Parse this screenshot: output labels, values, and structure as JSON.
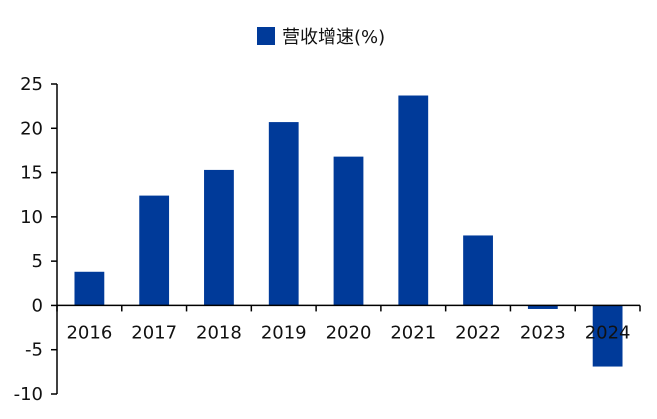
{
  "chart_data": {
    "type": "bar",
    "legend": {
      "position": "top-center",
      "label": "营收增速(%)"
    },
    "categories": [
      "2016",
      "2017",
      "2018",
      "2019",
      "2020",
      "2021",
      "2022",
      "2023",
      "2024"
    ],
    "series": [
      {
        "name": "营收增速(%)",
        "color": "#003a99",
        "values": [
          3.8,
          12.4,
          15.3,
          20.7,
          16.8,
          23.7,
          7.9,
          -0.4,
          -6.9
        ]
      }
    ],
    "ylim": [
      -10,
      25
    ],
    "yticks": [
      -10,
      -5,
      0,
      5,
      10,
      15,
      20,
      25
    ],
    "ytick_labels": [
      "-10",
      "-5",
      "0",
      "5",
      "10",
      "15",
      "20",
      "25"
    ],
    "grid": false,
    "title": "",
    "xlabel": "",
    "ylabel": ""
  }
}
